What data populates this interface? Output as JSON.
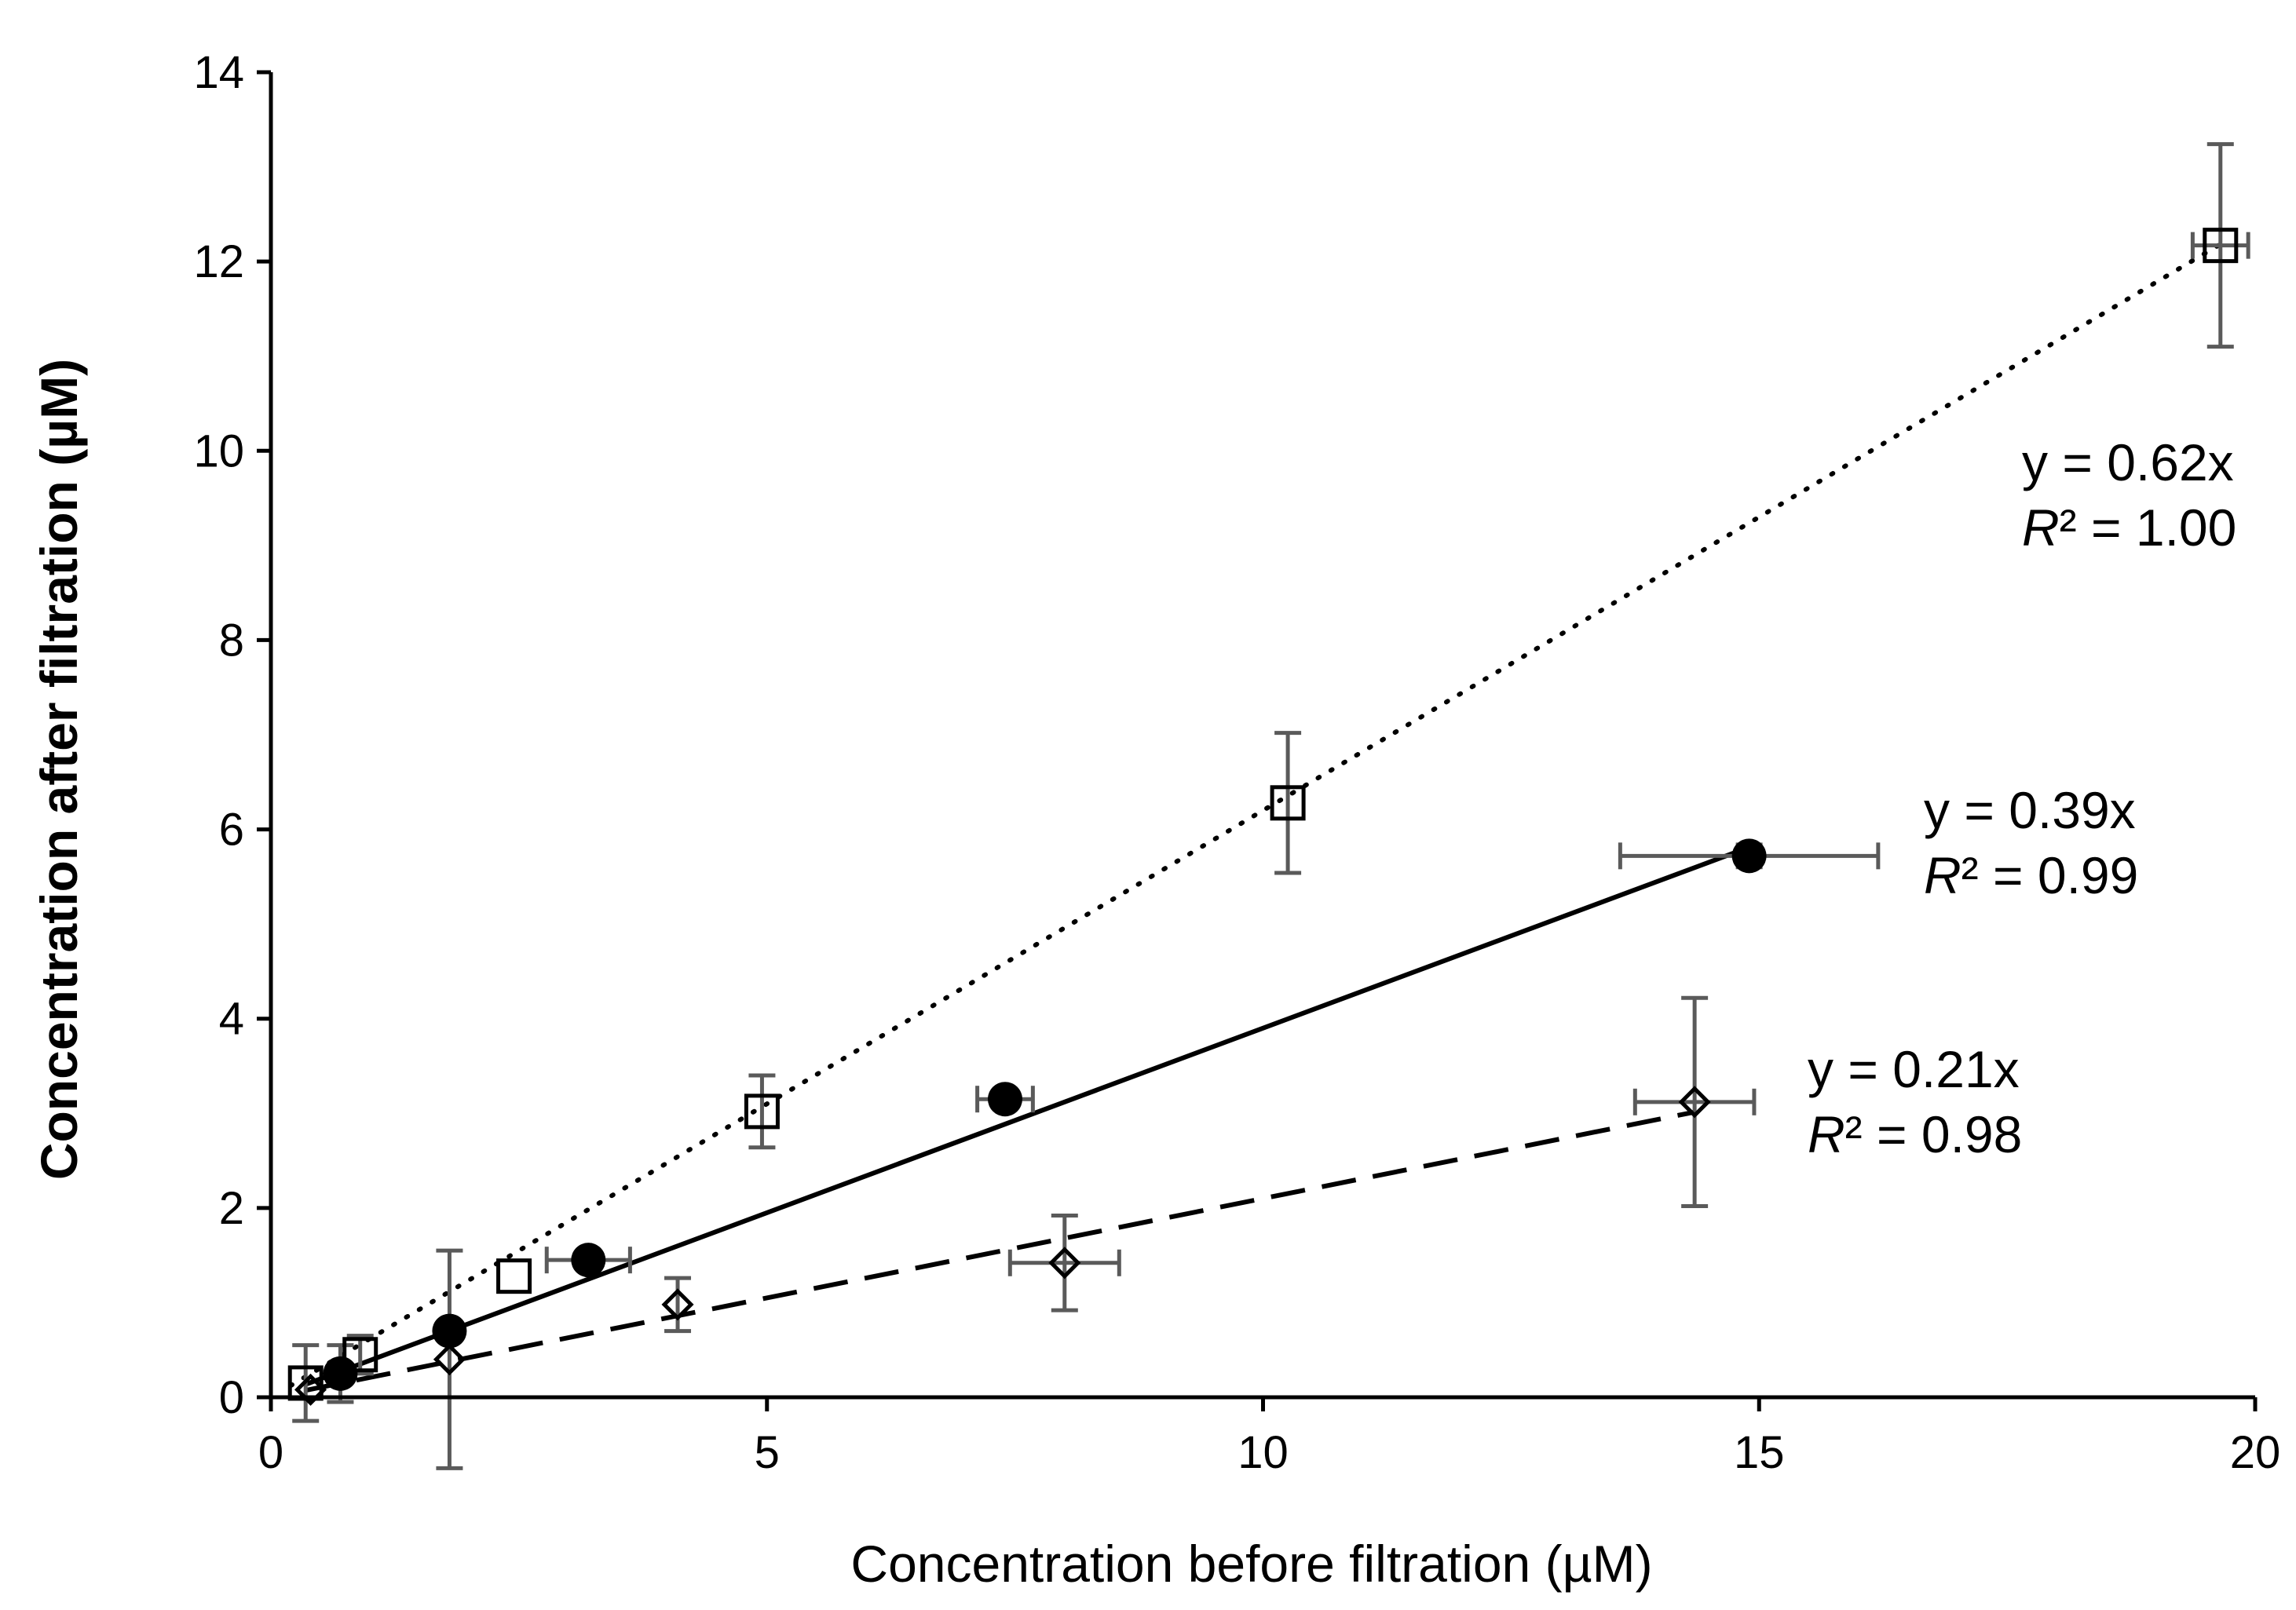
{
  "chart_data": {
    "type": "scatter",
    "xlabel": "Concentration before filtration (µM)",
    "ylabel": "Concentration after filtration (µM)",
    "xlim": [
      0,
      20
    ],
    "ylim": [
      0,
      14
    ],
    "xticks": [
      0,
      5,
      10,
      15,
      20
    ],
    "yticks": [
      0,
      2,
      4,
      6,
      8,
      10,
      12,
      14
    ],
    "grid": false,
    "legend": "none",
    "series": [
      {
        "name": "open squares (dotted fit)",
        "marker": "square-open",
        "line_style": "dotted",
        "slope": 0.62,
        "fit_x_range": [
          0.2,
          19.7
        ],
        "points": [
          {
            "x": 0.35,
            "y": 0.15,
            "yerr": 0.4,
            "xerr": 0
          },
          {
            "x": 0.9,
            "y": 0.45,
            "yerr": 0.2,
            "xerr": 0
          },
          {
            "x": 2.45,
            "y": 1.28,
            "yerr": 0,
            "xerr": 0
          },
          {
            "x": 4.95,
            "y": 3.02,
            "yerr": 0.38,
            "xerr": 0
          },
          {
            "x": 10.25,
            "y": 6.28,
            "yerr": 0.74,
            "xerr": 0
          },
          {
            "x": 19.65,
            "y": 12.17,
            "yerr": 1.07,
            "xerr": 0.28
          }
        ],
        "equation": "y = 0.62x",
        "r2_prefix": "R",
        "r2_rest": "² = 1.00"
      },
      {
        "name": "filled circles (solid fit)",
        "marker": "circle-filled",
        "line_style": "solid",
        "slope": 0.39,
        "fit_x_range": [
          0.35,
          14.85
        ],
        "points": [
          {
            "x": 0.7,
            "y": 0.25,
            "yerr": 0.3,
            "xerr": 0
          },
          {
            "x": 1.8,
            "y": 0.7,
            "yerr": 0,
            "xerr": 0
          },
          {
            "x": 3.2,
            "y": 1.45,
            "yerr": 0,
            "xerr": 0.42
          },
          {
            "x": 7.4,
            "y": 3.15,
            "yerr": 0,
            "xerr": 0.28
          },
          {
            "x": 14.9,
            "y": 5.72,
            "yerr": 0.12,
            "xerr": 1.3
          }
        ],
        "equation": "y = 0.39x",
        "r2_prefix": "R",
        "r2_rest": "² = 0.99"
      },
      {
        "name": "open diamonds (dashed fit)",
        "marker": "diamond-open",
        "line_style": "dashed",
        "slope": 0.21,
        "fit_x_range": [
          0.35,
          14.35
        ],
        "points": [
          {
            "x": 0.4,
            "y": 0.08,
            "yerr": 0,
            "xerr": 0
          },
          {
            "x": 1.8,
            "y": 0.4,
            "yerr": 1.15,
            "xerr": 0
          },
          {
            "x": 4.1,
            "y": 0.98,
            "yerr": 0.28,
            "xerr": 0
          },
          {
            "x": 8.0,
            "y": 1.42,
            "yerr": 0.5,
            "xerr": 0.55
          },
          {
            "x": 14.35,
            "y": 3.12,
            "yerr": 1.1,
            "xerr": 0.6
          }
        ],
        "equation": "y = 0.21x",
        "r2_prefix": "R",
        "r2_rest": "² = 0.98"
      }
    ]
  },
  "colors": {
    "axis": "#000000",
    "error_bar": "#5a5a5a",
    "series": "#000000"
  }
}
